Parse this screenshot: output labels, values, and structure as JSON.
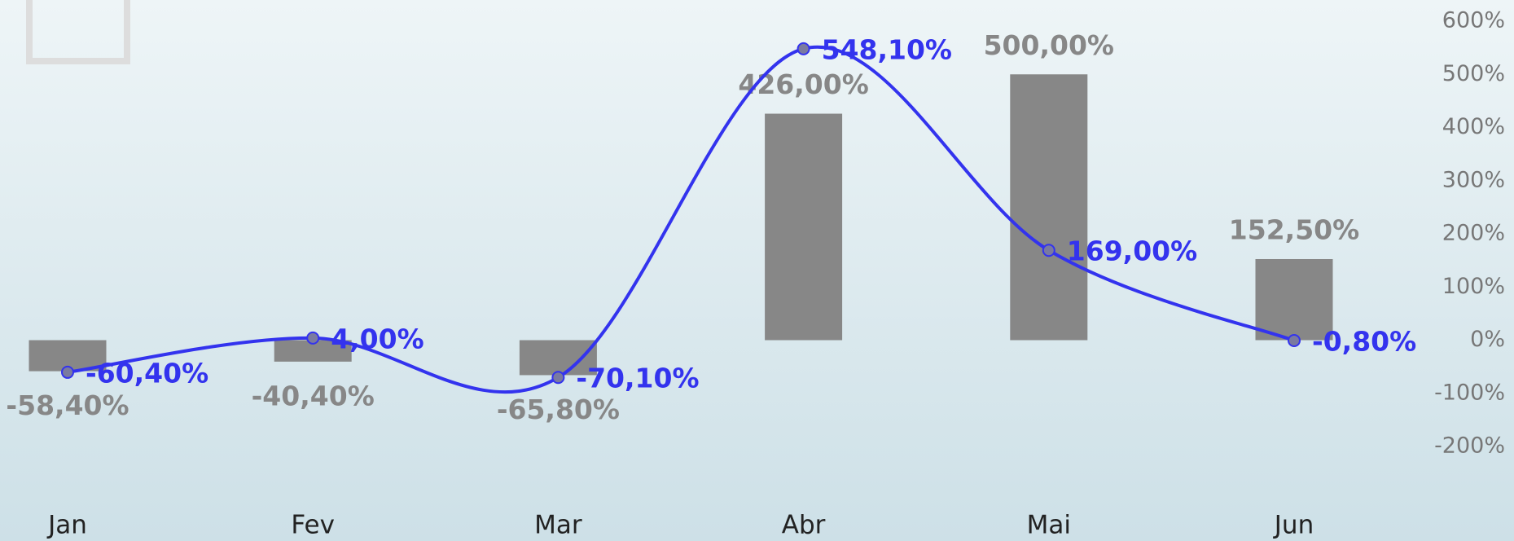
{
  "chart_data": {
    "type": "combo",
    "categories": [
      "Jan",
      "Fev",
      "Mar",
      "Abr",
      "Mai",
      "Jun"
    ],
    "series": [
      {
        "type": "bar",
        "color": "#878787",
        "values": [
          -58.4,
          -40.4,
          -65.8,
          426,
          500,
          152.5
        ],
        "value_labels": [
          "-58,40%",
          "-40,40%",
          "-65,80%",
          "426,00%",
          "500,00%",
          "152,50%"
        ]
      },
      {
        "type": "line",
        "color": "#3333ee",
        "values": [
          -60.4,
          4.0,
          -70.1,
          548.1,
          169,
          -0.8
        ],
        "value_labels": [
          "-60,40%",
          "4,00%",
          "-70,10%",
          "548,10%",
          "169,00%",
          "-0,80%"
        ]
      }
    ],
    "ylim": [
      -200,
      600
    ],
    "yticks": [
      {
        "value": -200,
        "label": "-200%"
      },
      {
        "value": -100,
        "label": "-100%"
      },
      {
        "value": 0,
        "label": "0%"
      },
      {
        "value": 100,
        "label": "100%"
      },
      {
        "value": 200,
        "label": "200%"
      },
      {
        "value": 300,
        "label": "300%"
      },
      {
        "value": 400,
        "label": "400%"
      },
      {
        "value": 500,
        "label": "500%"
      },
      {
        "value": 600,
        "label": "600%"
      }
    ],
    "grid": false
  }
}
